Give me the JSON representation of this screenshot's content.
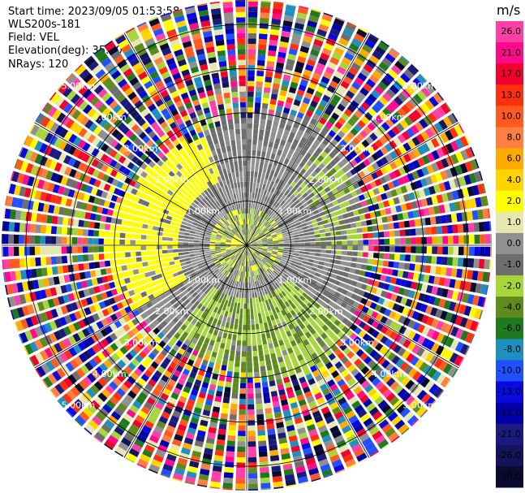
{
  "header": {
    "start_time": "Start time: 2023/09/05 01:53:58",
    "instrument": "WLS200s-181",
    "field": "Field: VEL",
    "elevation": "Elevation(deg): 35.30",
    "nrays": "NRays: 120"
  },
  "chart_data": {
    "type": "ppi-polar",
    "field": "VEL",
    "unit": "m/s",
    "n_rays": 120,
    "elevation_deg": 35.3,
    "range_rings_km": [
      1.0,
      2.0,
      3.0,
      4.0,
      5.0
    ],
    "ring_labels": [
      "1.00km",
      "2.00km",
      "3.00km",
      "4.00km",
      "5.00km"
    ],
    "colorbar": {
      "unit_label": "m/s",
      "ticks": [
        "26.0",
        "21.0",
        "17.0",
        "13.0",
        "10.0",
        "8.0",
        "6.0",
        "4.0",
        "2.0",
        "1.0",
        "0.0",
        "-1.0",
        "-2.0",
        "-4.0",
        "-6.0",
        "-8.0",
        "-10.0",
        "-13.0",
        "-17.0",
        "-21.0",
        "-26.0",
        "-30.0"
      ],
      "colors": [
        "#ff3fa8",
        "#ff0a8a",
        "#f2002e",
        "#ff3010",
        "#ff5a20",
        "#ff7f40",
        "#ffaa00",
        "#ffd400",
        "#ffff00",
        "#e6e8b0",
        "#909090",
        "#6e6e6e",
        "#a6d63c",
        "#5f8a1e",
        "#1f7a1f",
        "#1e8fbf",
        "#2050ff",
        "#0a0ae0",
        "#0000a8",
        "#1a1a80",
        "#14145a",
        "#0a0a30"
      ]
    },
    "regions": [
      {
        "description": "near-zero (grey) velocities within ~2.8 km",
        "value_range": [
          -1.0,
          1.0
        ]
      },
      {
        "description": "positive velocities (yellow) to the west / north-west",
        "value_range": [
          2.0,
          4.0
        ]
      },
      {
        "description": "negative velocities (green) to the south and east",
        "value_range": [
          -4.0,
          -1.0
        ]
      },
      {
        "description": "noise (all colours) beyond ~3 km range",
        "value_range": [
          -30.0,
          26.0
        ]
      }
    ]
  }
}
